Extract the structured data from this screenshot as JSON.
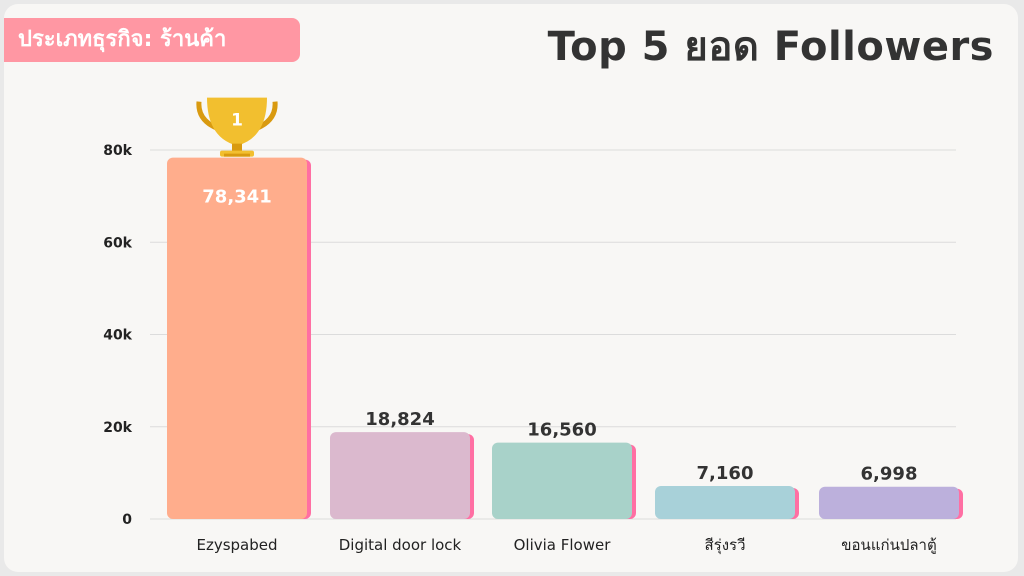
{
  "badge": {
    "label": "ประเภทธุรกิจ: ร้านค้า"
  },
  "page_title": "Top 5 ยอด Followers",
  "trophy": {
    "rank": "1"
  },
  "colors": {
    "background": "#f8f7f5",
    "badge": "#ff97a3",
    "bar_edge": "#ff6fa3",
    "bars": [
      "#ffad8c",
      "#dbb9ce",
      "#a8d2c9",
      "#a8d1d9",
      "#bcb0dc"
    ]
  },
  "chart_data": {
    "type": "bar",
    "categories": [
      "Ezyspabed",
      "Digital door lock",
      "Olivia Flower",
      "สีรุ่งรวี",
      "ขอนแก่นปลาตู้"
    ],
    "values": [
      78341,
      18824,
      16560,
      7160,
      6998
    ],
    "value_labels": [
      "78,341",
      "18,824",
      "16,560",
      "7,160",
      "6,998"
    ],
    "ylim": [
      0,
      80000
    ],
    "y_ticks": [
      0,
      20000,
      40000,
      60000,
      80000
    ],
    "y_tick_labels": [
      "0",
      "20k",
      "40k",
      "60k",
      "80k"
    ],
    "grid": true,
    "title": "Top 5 ยอด Followers",
    "xlabel": "",
    "ylabel": ""
  }
}
